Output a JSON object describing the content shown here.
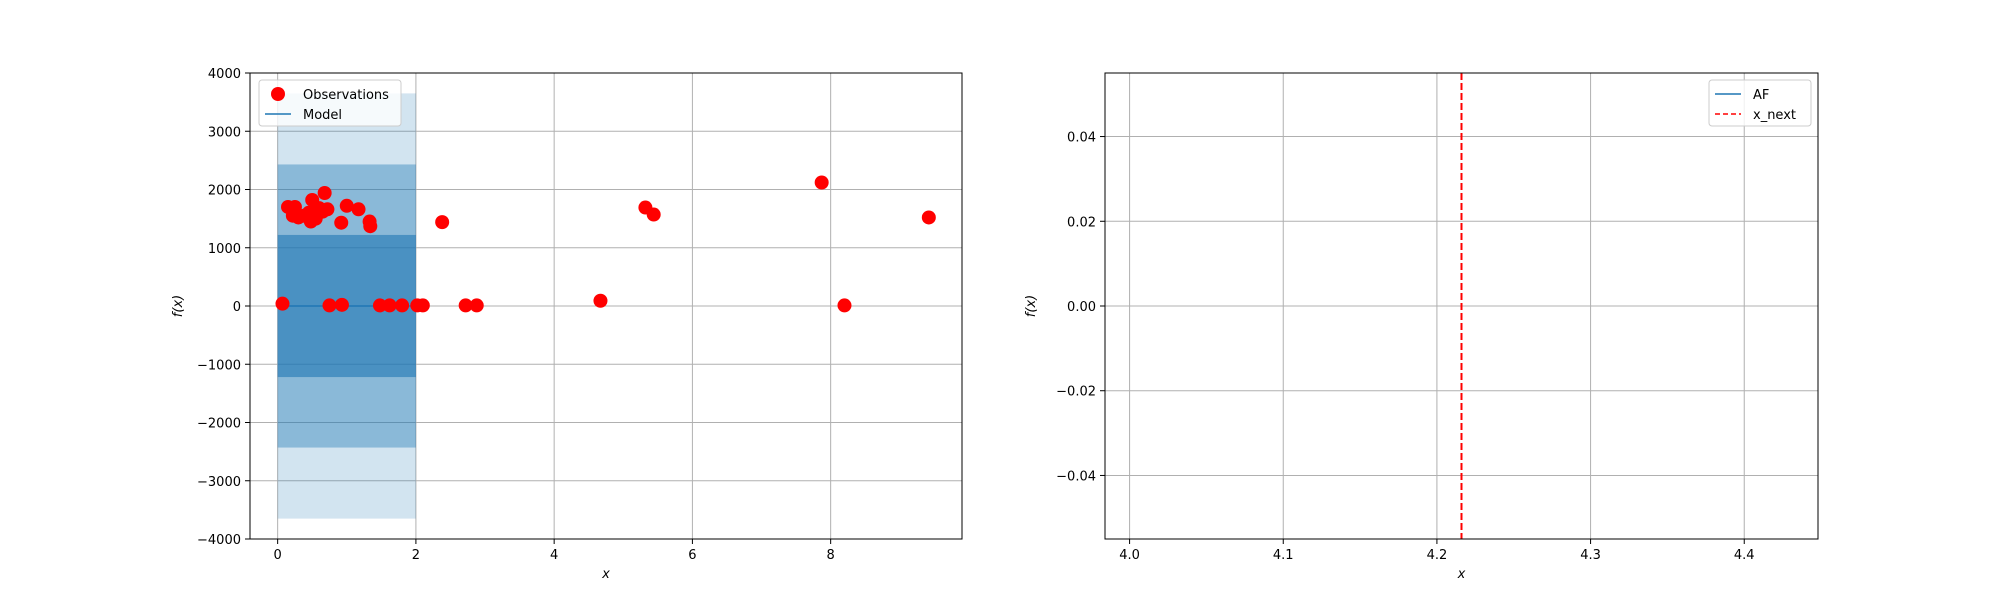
{
  "colors": {
    "observations": "#ff0000",
    "model_line": "#1f77b4",
    "band_color": "#1f77b4",
    "x_next": "#ff0000",
    "grid": "#b0b0b0"
  },
  "chart_data": [
    {
      "type": "scatter",
      "xlabel": "x",
      "ylabel": "f(x)",
      "xlim": [
        -0.4,
        9.9
      ],
      "ylim": [
        -4000,
        4000
      ],
      "xticks": [
        0,
        2,
        4,
        6,
        8
      ],
      "xtick_labels": [
        "0",
        "2",
        "4",
        "6",
        "8"
      ],
      "yticks": [
        -4000,
        -3000,
        -2000,
        -1000,
        0,
        1000,
        2000,
        3000,
        4000
      ],
      "ytick_labels": [
        "−4000",
        "−3000",
        "−2000",
        "−1000",
        "0",
        "1000",
        "2000",
        "3000",
        "4000"
      ],
      "grid": true,
      "legend_position": "top-left",
      "legend": [
        "Observations",
        "Model"
      ],
      "observations": [
        {
          "x": 0.07,
          "y": 40
        },
        {
          "x": 0.15,
          "y": 1700
        },
        {
          "x": 0.22,
          "y": 1550
        },
        {
          "x": 0.25,
          "y": 1700
        },
        {
          "x": 0.3,
          "y": 1520
        },
        {
          "x": 0.38,
          "y": 1550
        },
        {
          "x": 0.45,
          "y": 1600
        },
        {
          "x": 0.48,
          "y": 1450
        },
        {
          "x": 0.5,
          "y": 1820
        },
        {
          "x": 0.55,
          "y": 1500
        },
        {
          "x": 0.6,
          "y": 1680
        },
        {
          "x": 0.65,
          "y": 1620
        },
        {
          "x": 0.68,
          "y": 1940
        },
        {
          "x": 0.72,
          "y": 1660
        },
        {
          "x": 0.75,
          "y": 10
        },
        {
          "x": 0.92,
          "y": 1430
        },
        {
          "x": 0.93,
          "y": 20
        },
        {
          "x": 1.0,
          "y": 1720
        },
        {
          "x": 1.17,
          "y": 1660
        },
        {
          "x": 1.33,
          "y": 1450
        },
        {
          "x": 1.34,
          "y": 1370
        },
        {
          "x": 1.48,
          "y": 10
        },
        {
          "x": 1.62,
          "y": 10
        },
        {
          "x": 1.8,
          "y": 10
        },
        {
          "x": 2.02,
          "y": 10
        },
        {
          "x": 2.1,
          "y": 10
        },
        {
          "x": 2.38,
          "y": 1440
        },
        {
          "x": 2.72,
          "y": 10
        },
        {
          "x": 2.88,
          "y": 10
        },
        {
          "x": 4.67,
          "y": 90
        },
        {
          "x": 5.32,
          "y": 1690
        },
        {
          "x": 5.44,
          "y": 1570
        },
        {
          "x": 7.87,
          "y": 2120
        },
        {
          "x": 8.2,
          "y": 10
        },
        {
          "x": 9.42,
          "y": 1520
        }
      ],
      "model": {
        "x": [
          0.0,
          2.0
        ],
        "y": [
          0,
          0
        ]
      },
      "confidence_bands": [
        {
          "x": [
            0.0,
            2.0
          ],
          "lower": -3650,
          "upper": 3650,
          "opacity": 0.2
        },
        {
          "x": [
            0.0,
            2.0
          ],
          "lower": -2430,
          "upper": 2430,
          "opacity": 0.4
        },
        {
          "x": [
            0.0,
            2.0
          ],
          "lower": -1220,
          "upper": 1220,
          "opacity": 0.6
        }
      ]
    },
    {
      "type": "line",
      "xlabel": "x",
      "ylabel": "f(x)",
      "xlim": [
        3.984,
        4.448
      ],
      "ylim": [
        -0.055,
        0.055
      ],
      "xticks": [
        4.0,
        4.1,
        4.2,
        4.3,
        4.4
      ],
      "xtick_labels": [
        "4.0",
        "4.1",
        "4.2",
        "4.3",
        "4.4"
      ],
      "yticks": [
        -0.04,
        -0.02,
        0.0,
        0.02,
        0.04
      ],
      "ytick_labels": [
        "−0.04",
        "−0.02",
        "0.00",
        "0.02",
        "0.04"
      ],
      "grid": true,
      "legend_position": "top-right",
      "legend": [
        "AF",
        "x_next"
      ],
      "af": {
        "x": [],
        "y": []
      },
      "x_next": 4.216
    }
  ]
}
